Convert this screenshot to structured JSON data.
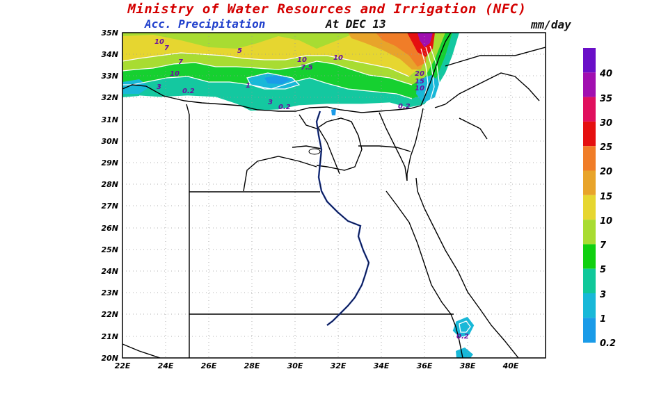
{
  "header": {
    "title": "Ministry of Water Resources and Irrigation (NFC)",
    "subtitle": "Acc. Precipitation",
    "date": "At DEC 13",
    "units": "mm/day"
  },
  "map": {
    "lat_labels": [
      "35N",
      "34N",
      "33N",
      "32N",
      "31N",
      "30N",
      "29N",
      "28N",
      "27N",
      "26N",
      "25N",
      "24N",
      "23N",
      "22N",
      "21N",
      "20N"
    ],
    "lon_labels": [
      "22E",
      "24E",
      "26E",
      "28E",
      "30E",
      "32E",
      "34E",
      "36E",
      "38E",
      "40E"
    ],
    "contour_labels": [
      "10",
      "7",
      "7",
      "5",
      "10",
      "3",
      "0.2",
      "1",
      "3",
      "0.2",
      "10",
      "7.5",
      "10",
      "20",
      "15",
      "10",
      "0.2",
      "0.2"
    ],
    "region": "Egypt"
  },
  "legend": {
    "levels": [
      "40",
      "35",
      "30",
      "25",
      "20",
      "15",
      "10",
      "7",
      "5",
      "3",
      "1",
      "0.2"
    ],
    "colors": [
      "#6a0fc8",
      "#a10fb0",
      "#e0105e",
      "#e51010",
      "#f07d28",
      "#e8a42a",
      "#e6d630",
      "#a8dc32",
      "#10d010",
      "#10c89a",
      "#18b8d8",
      "#1a9be8"
    ]
  }
}
